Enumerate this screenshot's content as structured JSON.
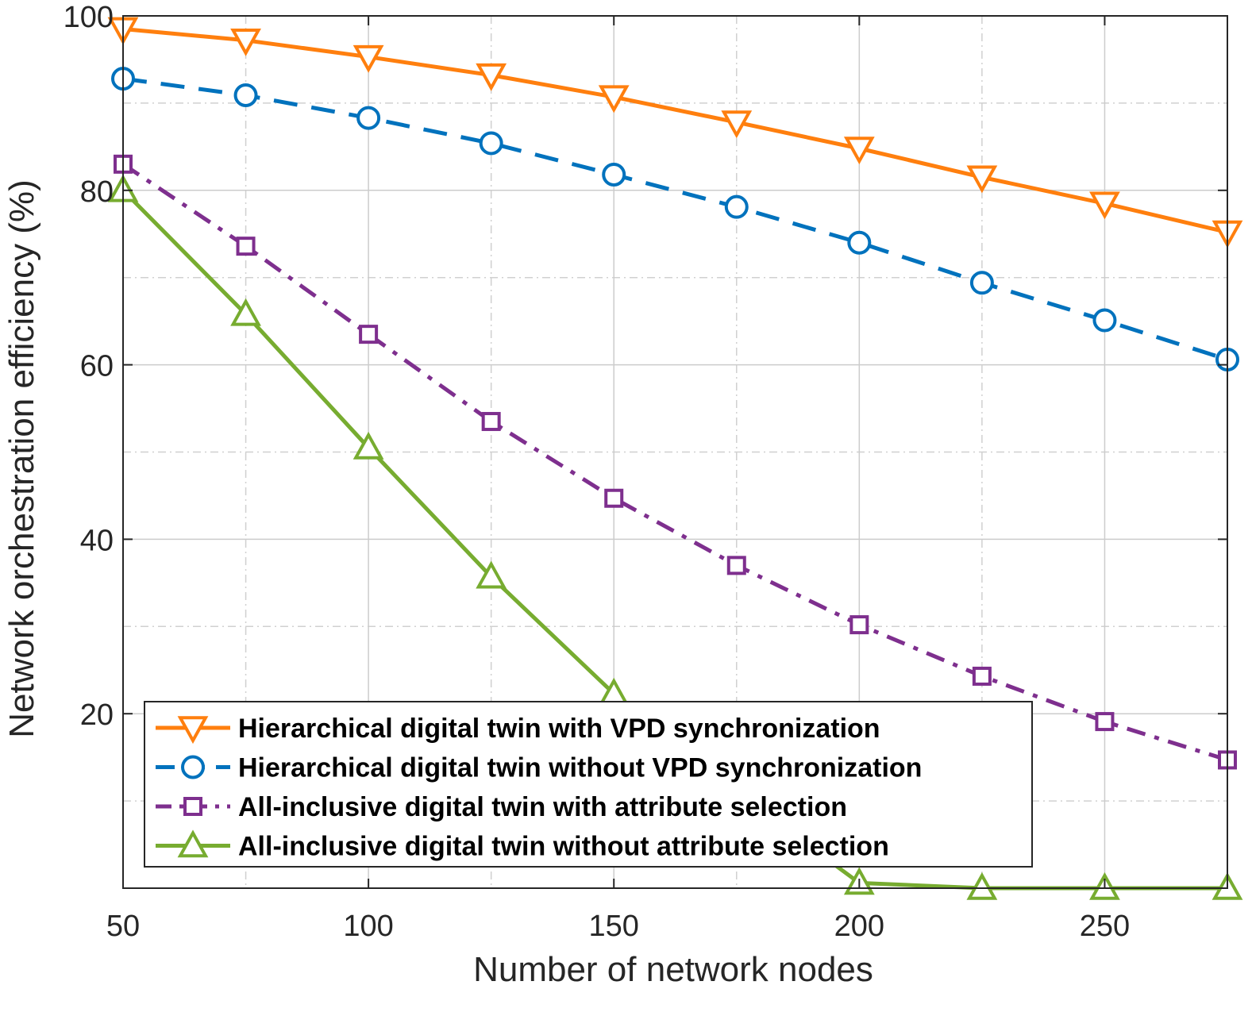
{
  "chart_data": {
    "type": "line",
    "title": "",
    "xlabel": "Number of network nodes",
    "ylabel": "Network orchestration efficiency (%)",
    "xlim": [
      50,
      275
    ],
    "ylim": [
      0,
      100
    ],
    "x_ticks": [
      50,
      100,
      150,
      200,
      250
    ],
    "y_ticks": [
      20,
      40,
      60,
      80,
      100
    ],
    "grid": true,
    "legend_position": "bottom-left",
    "x": [
      50,
      75,
      100,
      125,
      150,
      175,
      200,
      225,
      250,
      275
    ],
    "series": [
      {
        "name": "Hierarchical digital twin with VPD synchronization",
        "values": [
          98.5,
          97.2,
          95.3,
          93.2,
          90.7,
          87.8,
          84.8,
          81.5,
          78.5,
          75.2
        ],
        "color": "#FF7F0E",
        "line_style": "solid",
        "marker": "triangle-down"
      },
      {
        "name": "Hierarchical digital twin without VPD synchronization",
        "values": [
          92.8,
          90.9,
          88.3,
          85.4,
          81.8,
          78.1,
          74.0,
          69.4,
          65.1,
          60.6
        ],
        "color": "#0072BD",
        "line_style": "dashed",
        "marker": "circle"
      },
      {
        "name": "All-inclusive digital twin with attribute selection",
        "values": [
          83.0,
          73.6,
          63.5,
          53.5,
          44.7,
          37.0,
          30.2,
          24.3,
          19.1,
          14.7
        ],
        "color": "#7E2F8E",
        "line_style": "dash-dot",
        "marker": "square"
      },
      {
        "name": "All-inclusive digital twin without attribute selection",
        "values": [
          80.0,
          65.8,
          50.5,
          35.7,
          22.3,
          11.0,
          0.6,
          0.0,
          0.0,
          0.0
        ],
        "color": "#77AC30",
        "line_style": "solid",
        "marker": "triangle-up"
      }
    ]
  }
}
